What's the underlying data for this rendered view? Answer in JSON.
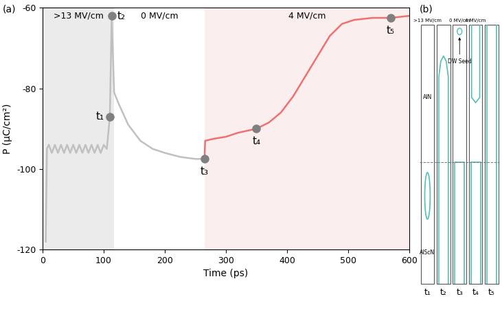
{
  "chart_data": {
    "type": "line",
    "panel_label": "(a)",
    "xlabel": "Time (ps)",
    "ylabel": "P (μC/cm²)",
    "xlim": [
      0,
      600
    ],
    "ylim": [
      -120,
      -60
    ],
    "xticks": [
      0,
      100,
      200,
      300,
      400,
      500,
      600
    ],
    "yticks": [
      -120,
      -100,
      -80,
      -60
    ],
    "regions": [
      {
        "label": ">13 MV/cm",
        "start": 0,
        "end": 117,
        "color": "#ebebeb"
      },
      {
        "label": "0 MV/cm",
        "start": 117,
        "end": 265,
        "color": "#ffffff"
      },
      {
        "label": "4 MV/cm",
        "start": 265,
        "end": 600,
        "color": "#fbeeee"
      }
    ],
    "series": [
      {
        "color": "#c0c0c0",
        "x": [
          5,
          7,
          10,
          15,
          20,
          25,
          30,
          35,
          40,
          45,
          50,
          55,
          60,
          65,
          70,
          75,
          80,
          85,
          90,
          95,
          100,
          105,
          110,
          113,
          117,
          125,
          140,
          160,
          180,
          200,
          225,
          250,
          265
        ],
        "values": [
          -118,
          -95,
          -94,
          -96,
          -94,
          -96,
          -94,
          -96,
          -94,
          -96,
          -94,
          -96,
          -94,
          -96,
          -94,
          -96,
          -94,
          -96,
          -94,
          -96,
          -94,
          -95,
          -87,
          -62,
          -81,
          -84,
          -89,
          -93,
          -95,
          -96,
          -97,
          -97.5,
          -97.5
        ]
      },
      {
        "color": "#f07070",
        "x": [
          265,
          266,
          280,
          300,
          320,
          350,
          370,
          390,
          410,
          430,
          450,
          470,
          490,
          510,
          540,
          570,
          600
        ],
        "values": [
          -97.5,
          -93,
          -92.5,
          -92,
          -91,
          -90,
          -88.5,
          -86,
          -82,
          -77,
          -72,
          -67,
          -64,
          -63,
          -62.5,
          -62.5,
          -62
        ]
      }
    ],
    "markers": [
      {
        "label": "t₁",
        "x": 110,
        "y": -87
      },
      {
        "label": "t₂",
        "x": 113,
        "y": -62
      },
      {
        "label": "t₃",
        "x": 265,
        "y": -97.5
      },
      {
        "label": "t₄",
        "x": 350,
        "y": -90
      },
      {
        "label": "t₅",
        "x": 570,
        "y": -62.5
      }
    ],
    "marker_color": "#808080"
  },
  "diagram": {
    "panel_label": "(b)",
    "columns": [
      "t₁",
      "t₂",
      "t₃",
      "t₄",
      "t₅"
    ],
    "field_labels": [
      {
        "text": ">13 MV/cm",
        "column": 0
      },
      {
        "text": "0 MV/cm",
        "column": 2
      },
      {
        "text": "4 MV/cm",
        "column": 3
      }
    ],
    "layers": {
      "top": "AlN",
      "bottom": "AlScN"
    },
    "annotation": {
      "text": "DW Seed",
      "column": 2
    },
    "color": "#4fc1b5"
  }
}
